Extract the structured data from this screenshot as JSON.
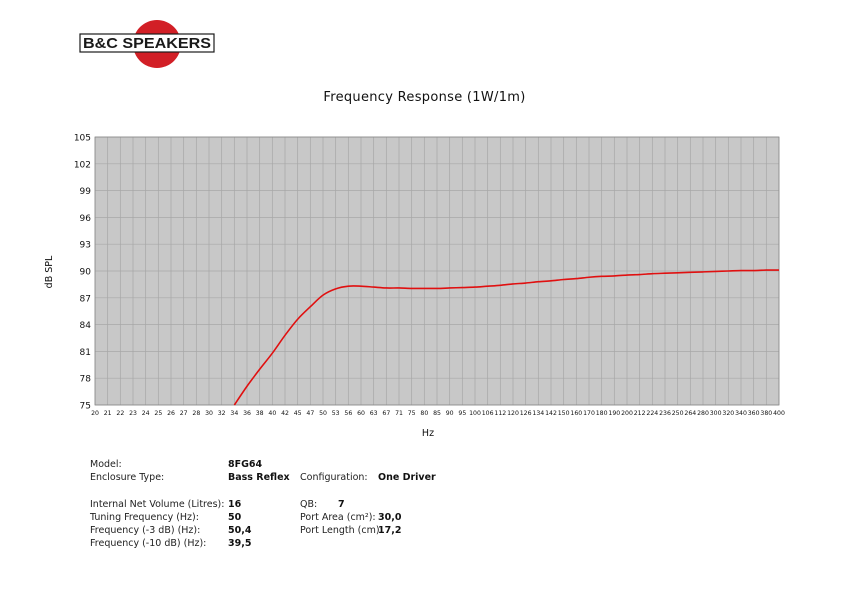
{
  "brand": {
    "logo_text": "B&C SPEAKERS",
    "colors": {
      "red": "#d21f26",
      "black": "#1a1a1a"
    }
  },
  "chart_data": {
    "type": "line",
    "title": "Frequency Response (1W/1m)",
    "xlabel": "Hz",
    "ylabel": "dB SPL",
    "grid": true,
    "plot_background": "#c8c8c8",
    "grid_color": "#a7a7a7",
    "line_color": "#e01010",
    "x_ticks": [
      "20",
      "21",
      "22",
      "23",
      "24",
      "25",
      "26",
      "27",
      "28",
      "30",
      "32",
      "34",
      "36",
      "38",
      "40",
      "42",
      "45",
      "47",
      "50",
      "53",
      "56",
      "60",
      "63",
      "67",
      "71",
      "75",
      "80",
      "85",
      "90",
      "95",
      "100",
      "106",
      "112",
      "120",
      "126",
      "134",
      "142",
      "150",
      "160",
      "170",
      "180",
      "190",
      "200",
      "212",
      "224",
      "236",
      "250",
      "264",
      "280",
      "300",
      "320",
      "340",
      "360",
      "380",
      "400"
    ],
    "y_ticks": [
      75,
      78,
      81,
      84,
      87,
      90,
      93,
      96,
      99,
      102,
      105
    ],
    "ylim": [
      75,
      105
    ],
    "series": [
      {
        "x": [
          "34",
          "36",
          "38",
          "40",
          "42",
          "45",
          "47",
          "50",
          "53",
          "56",
          "60",
          "63",
          "67",
          "71",
          "75",
          "80",
          "85",
          "90",
          "95",
          "100",
          "106",
          "112",
          "120",
          "126",
          "134",
          "142",
          "150",
          "160",
          "170",
          "180",
          "190",
          "200",
          "212",
          "224",
          "236",
          "250",
          "264",
          "280",
          "300",
          "320",
          "340",
          "360",
          "380",
          "400"
        ],
        "y": [
          75,
          77.1,
          79,
          80.8,
          82.8,
          84.6,
          86,
          87.3,
          88,
          88.3,
          88.3,
          88.2,
          88.1,
          88.1,
          88.05,
          88.05,
          88.05,
          88.1,
          88.15,
          88.2,
          88.3,
          88.4,
          88.55,
          88.65,
          88.8,
          88.9,
          89.05,
          89.15,
          89.3,
          89.4,
          89.45,
          89.55,
          89.6,
          89.7,
          89.75,
          89.8,
          89.85,
          89.9,
          89.95,
          90,
          90.05,
          90.05,
          90.1,
          90.1
        ]
      }
    ]
  },
  "specs": {
    "model": {
      "label": "Model:",
      "value": "8FG64"
    },
    "enclosure": {
      "label": "Enclosure Type:",
      "value": "Bass Reflex"
    },
    "configuration": {
      "label": "Configuration:",
      "value": "One Driver"
    },
    "volume": {
      "label": "Internal Net Volume (Litres):",
      "value": "16"
    },
    "tuning": {
      "label": "Tuning Frequency (Hz):",
      "value": "50"
    },
    "f3": {
      "label": "Frequency (-3 dB) (Hz):",
      "value": "50,4"
    },
    "f10": {
      "label": "Frequency (-10 dB) (Hz):",
      "value": "39,5"
    },
    "qb": {
      "label": "QB:",
      "value": "7"
    },
    "port_area": {
      "label": "Port Area (cm²):",
      "value": "30,0"
    },
    "port_length": {
      "label": "Port Length (cm):",
      "value": "17,2"
    }
  }
}
